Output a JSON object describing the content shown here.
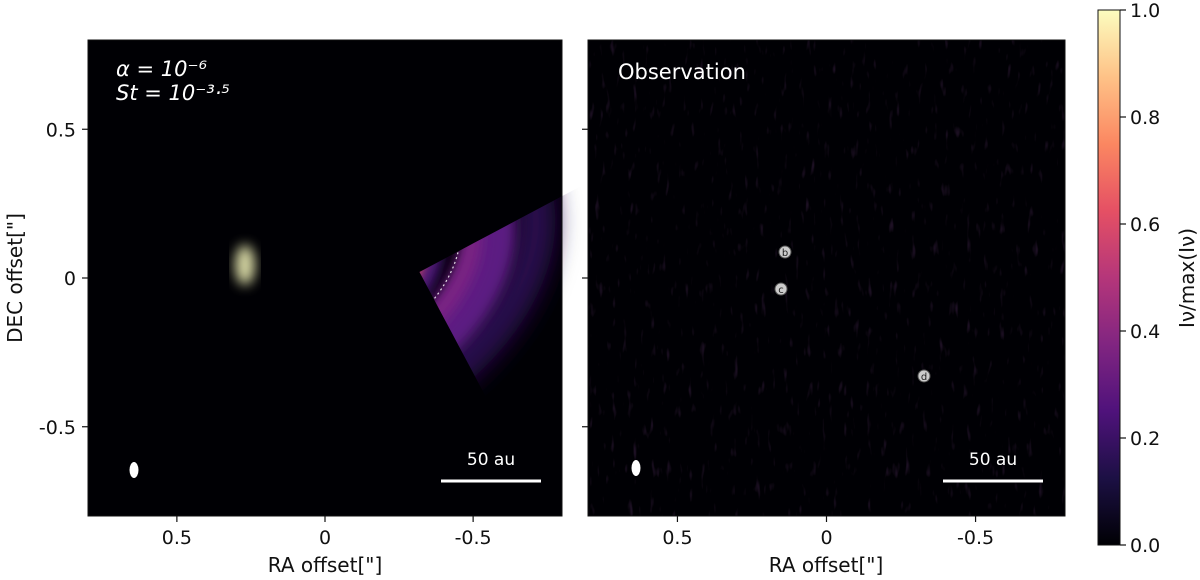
{
  "chart_data": [
    {
      "type": "heatmap",
      "panel": "model",
      "annotation_lines": [
        "α = 10⁻⁶",
        "St = 10⁻³·⁵"
      ],
      "xlabel": "RA offset[\"]",
      "ylabel": "DEC offset[\"]",
      "xlim": [
        0.8,
        -0.8
      ],
      "ylim": [
        -0.8,
        0.8
      ],
      "xticks": [
        -0.5,
        0,
        0.5
      ],
      "xtick_labels": [
        "-0.5",
        "0",
        "0.5"
      ],
      "yticks": [
        0.5,
        0,
        -0.5
      ],
      "ytick_labels": [
        "0.5",
        "0",
        "-0.5"
      ],
      "scale_bar_label": "50 au",
      "colormap": "magma"
    },
    {
      "type": "heatmap",
      "panel": "observation",
      "title": "Observation",
      "xlabel": "RA offset[\"]",
      "xlim": [
        0.8,
        -0.8
      ],
      "ylim": [
        -0.8,
        0.8
      ],
      "xticks": [
        -0.5,
        0,
        0.5
      ],
      "xtick_labels": [
        "-0.5",
        "0",
        "0.5"
      ],
      "scale_bar_label": "50 au",
      "markers": [
        {
          "label": "b",
          "x": 0.13,
          "y": 0.09
        },
        {
          "label": "c",
          "x": 0.15,
          "y": -0.04
        },
        {
          "label": "d",
          "x": -0.33,
          "y": -0.32
        }
      ],
      "colormap": "magma"
    }
  ],
  "colorbar": {
    "label": "Iν/max(Iν)",
    "range": [
      0.0,
      1.0
    ],
    "ticks": [
      0.0,
      0.2,
      0.4,
      0.6,
      0.8,
      1.0
    ],
    "tick_labels": [
      "0.0",
      "0.2",
      "0.4",
      "0.6",
      "0.8",
      "1.0"
    ]
  },
  "colors": {
    "background": "#000004",
    "outer_ring": "#5a1a80",
    "inner_ring": "#fcb570",
    "peak": "#fcfdbf",
    "dotted_ellipse": "#ffffff"
  }
}
